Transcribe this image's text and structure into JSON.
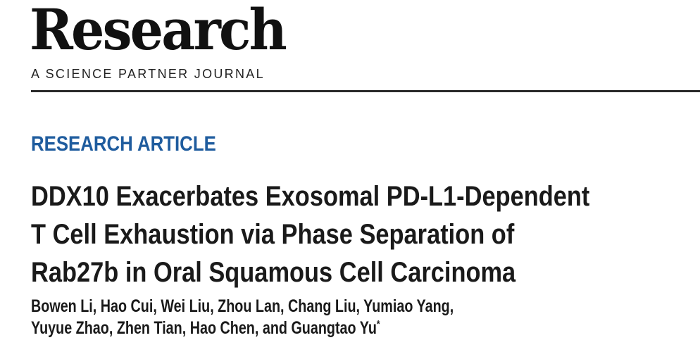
{
  "journal": {
    "name": "Research",
    "tagline": "A SCIENCE PARTNER JOURNAL"
  },
  "article_type": "RESEARCH ARTICLE",
  "title_lines": [
    "DDX10 Exacerbates Exosomal PD-L1-Dependent",
    "T Cell Exhaustion via Phase Separation of",
    "Rab27b in Oral Squamous Cell Carcinoma"
  ],
  "authors": {
    "line1": "Bowen Li, Hao Cui, Wei Liu, Zhou Lan, Chang Liu, Yumiao Yang,",
    "line2": "Yuyue Zhao, Zhen Tian, Hao Chen, and Guangtao Yu",
    "corresponding_mark": "*"
  },
  "colors": {
    "accent": "#1f5c9e",
    "text": "#1a1a1a"
  }
}
